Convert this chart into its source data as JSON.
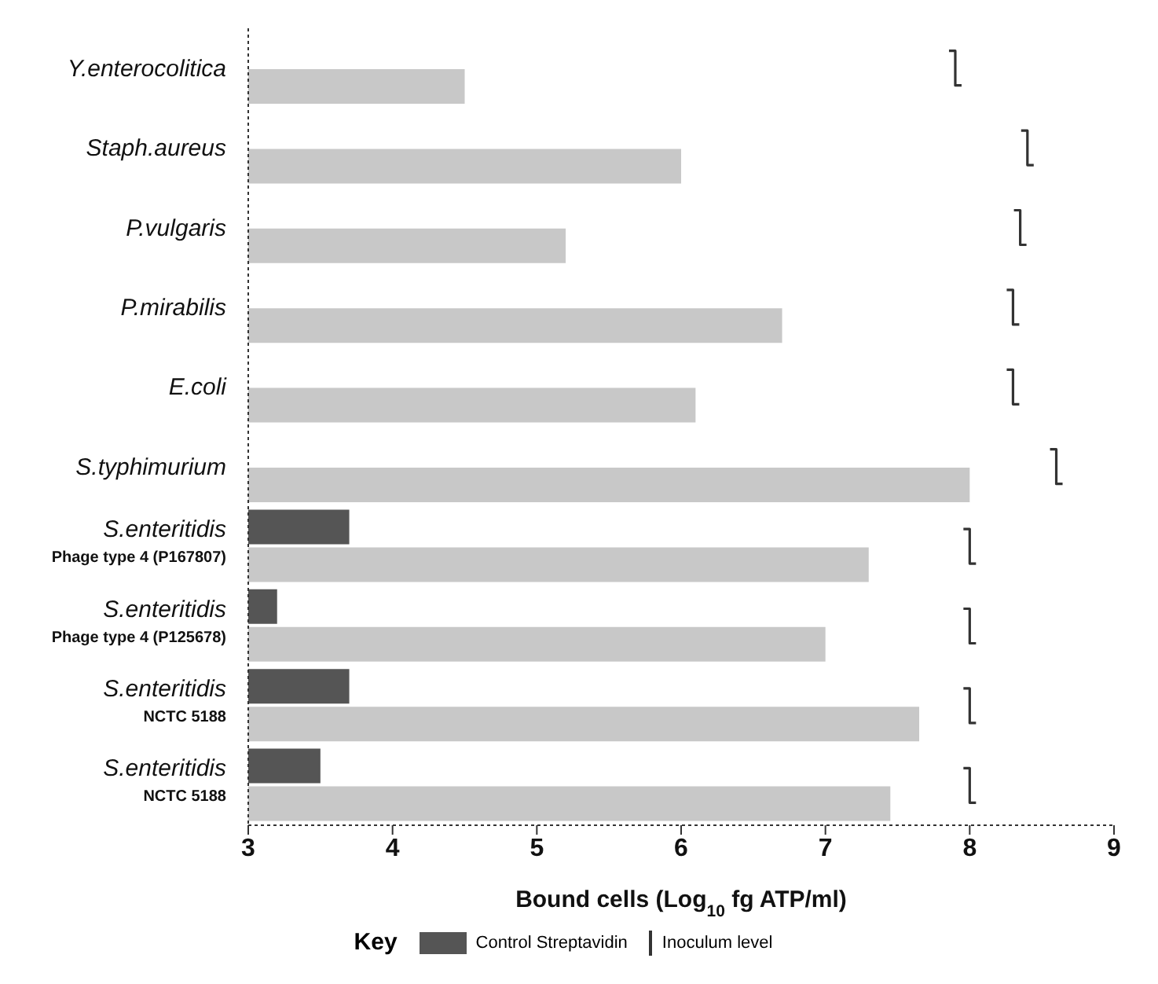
{
  "chart_data": {
    "type": "bar",
    "orientation": "horizontal",
    "xlabel": "Bound cells (Log$_{10}$ fg ATP/ml)",
    "legend_title": "Key",
    "categories": [
      "Y.enterocolitica",
      "Staph.aureus",
      "P.vulgaris",
      "P.mirabilis",
      "E.coli",
      "S.typhimurium",
      "S.enteritidis\nPhage type 4 (P167807)",
      "S.enteritidis\nPhage type 4 (P125678)",
      "S.enteritidis\nNCTC 5188",
      "S.enteritidis\nNCTC 5188"
    ],
    "series": [
      {
        "name": "Control Streptavidin",
        "color": "#555555",
        "values": [
          null,
          null,
          null,
          null,
          null,
          null,
          3.7,
          3.2,
          3.7,
          3.5
        ]
      },
      {
        "color": "#c8c8c8",
        "values": [
          4.5,
          6.0,
          5.2,
          6.7,
          6.1,
          8.0,
          7.3,
          7.0,
          7.65,
          7.45
        ]
      },
      {
        "name": "Inoculum level",
        "type": "scatter",
        "color": "#333333",
        "values": [
          7.9,
          8.4,
          8.35,
          8.3,
          8.3,
          8.6,
          8.0,
          8.0,
          8.0,
          8.0
        ]
      }
    ],
    "xlim": [
      3,
      9
    ],
    "xticks": [
      3,
      4,
      5,
      6,
      7,
      8,
      9
    ],
    "grid": false,
    "legend": "bottom"
  }
}
